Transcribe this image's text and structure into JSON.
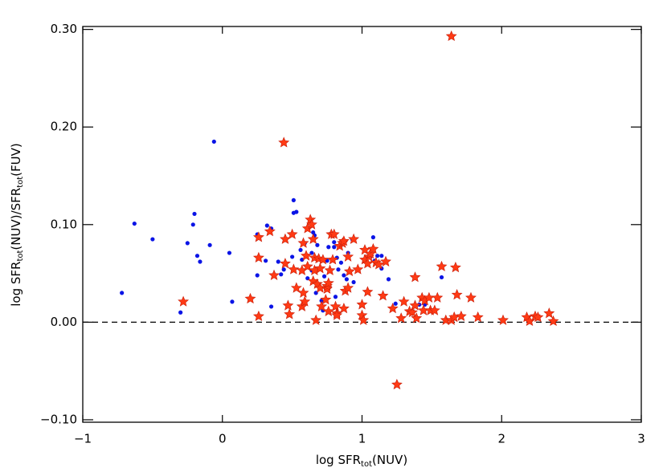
{
  "chart_data": {
    "type": "scatter",
    "xlabel": [
      "log SFR",
      "tot",
      "(NUV)"
    ],
    "ylabel": [
      "log SFR",
      "tot",
      "(NUV)/SFR",
      "tot",
      "(FUV)"
    ],
    "xlim": [
      -1,
      3
    ],
    "ylim": [
      -0.1025,
      0.303
    ],
    "xticks": [
      {
        "value": -1,
        "label": "−1"
      },
      0,
      1,
      2,
      3
    ],
    "yticks": [
      {
        "value": -0.1,
        "label": "−0.10"
      },
      {
        "value": 0,
        "label": "0.00"
      },
      {
        "value": 0.1,
        "label": "0.10"
      },
      {
        "value": 0.2,
        "label": "0.20"
      },
      {
        "value": 0.3,
        "label": "0.30"
      }
    ],
    "hline": 0,
    "series": [
      {
        "marker": "dot",
        "color": "#0a14e6",
        "x": [
          -0.72,
          -0.63,
          -0.5,
          -0.3,
          -0.25,
          -0.2,
          -0.21,
          -0.18,
          -0.16,
          -0.09,
          -0.06,
          0.05,
          0.07,
          0.25,
          0.25,
          0.31,
          0.32,
          0.35,
          0.35,
          0.4,
          0.42,
          0.44,
          0.5,
          0.51,
          0.51,
          0.53,
          0.56,
          0.57,
          0.59,
          0.61,
          0.64,
          0.64,
          0.65,
          0.66,
          0.67,
          0.68,
          0.71,
          0.72,
          0.73,
          0.75,
          0.76,
          0.78,
          0.8,
          0.8,
          0.81,
          0.82,
          0.83,
          0.85,
          0.87,
          0.89,
          0.9,
          0.93,
          0.94,
          1.03,
          1.06,
          1.08,
          1.09,
          1.11,
          1.14,
          1.14,
          1.19,
          1.24,
          1.41,
          1.45,
          1.57
        ],
        "y": [
          0.03,
          0.101,
          0.085,
          0.01,
          0.081,
          0.111,
          0.1,
          0.068,
          0.062,
          0.079,
          0.185,
          0.071,
          0.021,
          0.09,
          0.048,
          0.063,
          0.099,
          0.096,
          0.016,
          0.062,
          0.049,
          0.054,
          0.067,
          0.125,
          0.112,
          0.113,
          0.074,
          0.064,
          0.081,
          0.045,
          0.053,
          0.071,
          0.092,
          0.089,
          0.03,
          0.079,
          0.022,
          0.012,
          0.047,
          0.063,
          0.077,
          0.091,
          0.077,
          0.082,
          0.026,
          0.066,
          0.054,
          0.061,
          0.048,
          0.044,
          0.071,
          0.085,
          0.041,
          0.067,
          0.067,
          0.087,
          0.063,
          0.068,
          0.055,
          0.068,
          0.044,
          0.019,
          0.018,
          0.018,
          0.046
        ]
      },
      {
        "marker": "star",
        "color": "#ff3a14",
        "x": [
          -0.28,
          0.2,
          0.26,
          0.26,
          0.26,
          0.34,
          0.37,
          0.44,
          0.45,
          0.45,
          0.47,
          0.48,
          0.5,
          0.51,
          0.53,
          0.57,
          0.57,
          0.58,
          0.58,
          0.59,
          0.6,
          0.61,
          0.61,
          0.63,
          0.64,
          0.65,
          0.65,
          0.66,
          0.66,
          0.67,
          0.68,
          0.69,
          0.7,
          0.7,
          0.71,
          0.72,
          0.74,
          0.75,
          0.75,
          0.76,
          0.76,
          0.77,
          0.78,
          0.79,
          0.8,
          0.81,
          0.82,
          0.82,
          0.84,
          0.86,
          0.87,
          0.87,
          0.88,
          0.9,
          0.9,
          0.91,
          0.94,
          0.97,
          1.0,
          1.0,
          1.01,
          1.02,
          1.02,
          1.04,
          1.04,
          1.05,
          1.06,
          1.08,
          1.1,
          1.12,
          1.15,
          1.17,
          1.22,
          1.25,
          1.28,
          1.3,
          1.34,
          1.36,
          1.38,
          1.38,
          1.39,
          1.43,
          1.44,
          1.45,
          1.48,
          1.49,
          1.52,
          1.54,
          1.57,
          1.6,
          1.64,
          1.64,
          1.66,
          1.67,
          1.68,
          1.71,
          1.78,
          1.83,
          2.01,
          2.18,
          2.2,
          2.24,
          2.26,
          2.34,
          2.37
        ],
        "y": [
          0.021,
          0.024,
          0.066,
          0.087,
          0.006,
          0.093,
          0.048,
          0.184,
          0.085,
          0.06,
          0.017,
          0.008,
          0.09,
          0.054,
          0.035,
          0.016,
          0.053,
          0.081,
          0.03,
          0.021,
          0.068,
          0.057,
          0.096,
          0.105,
          0.1,
          0.085,
          0.042,
          0.066,
          0.053,
          0.002,
          0.039,
          0.065,
          0.035,
          0.055,
          0.016,
          0.064,
          0.023,
          0.034,
          0.037,
          0.011,
          0.04,
          0.053,
          0.09,
          0.064,
          0.09,
          0.016,
          0.009,
          0.007,
          0.078,
          0.081,
          0.014,
          0.083,
          0.032,
          0.067,
          0.035,
          0.052,
          0.085,
          0.054,
          0.018,
          0.007,
          0.002,
          0.064,
          0.074,
          0.031,
          0.06,
          0.067,
          0.07,
          0.075,
          0.061,
          0.059,
          0.027,
          0.062,
          0.014,
          -0.064,
          0.004,
          0.021,
          0.011,
          0.01,
          0.046,
          0.017,
          0.004,
          0.025,
          0.012,
          0.022,
          0.025,
          0.012,
          0.012,
          0.025,
          0.057,
          0.002,
          0.293,
          0.002,
          0.005,
          0.056,
          0.028,
          0.006,
          0.025,
          0.005,
          0.002,
          0.005,
          0.001,
          0.006,
          0.005,
          0.009,
          0.001
        ]
      }
    ]
  }
}
